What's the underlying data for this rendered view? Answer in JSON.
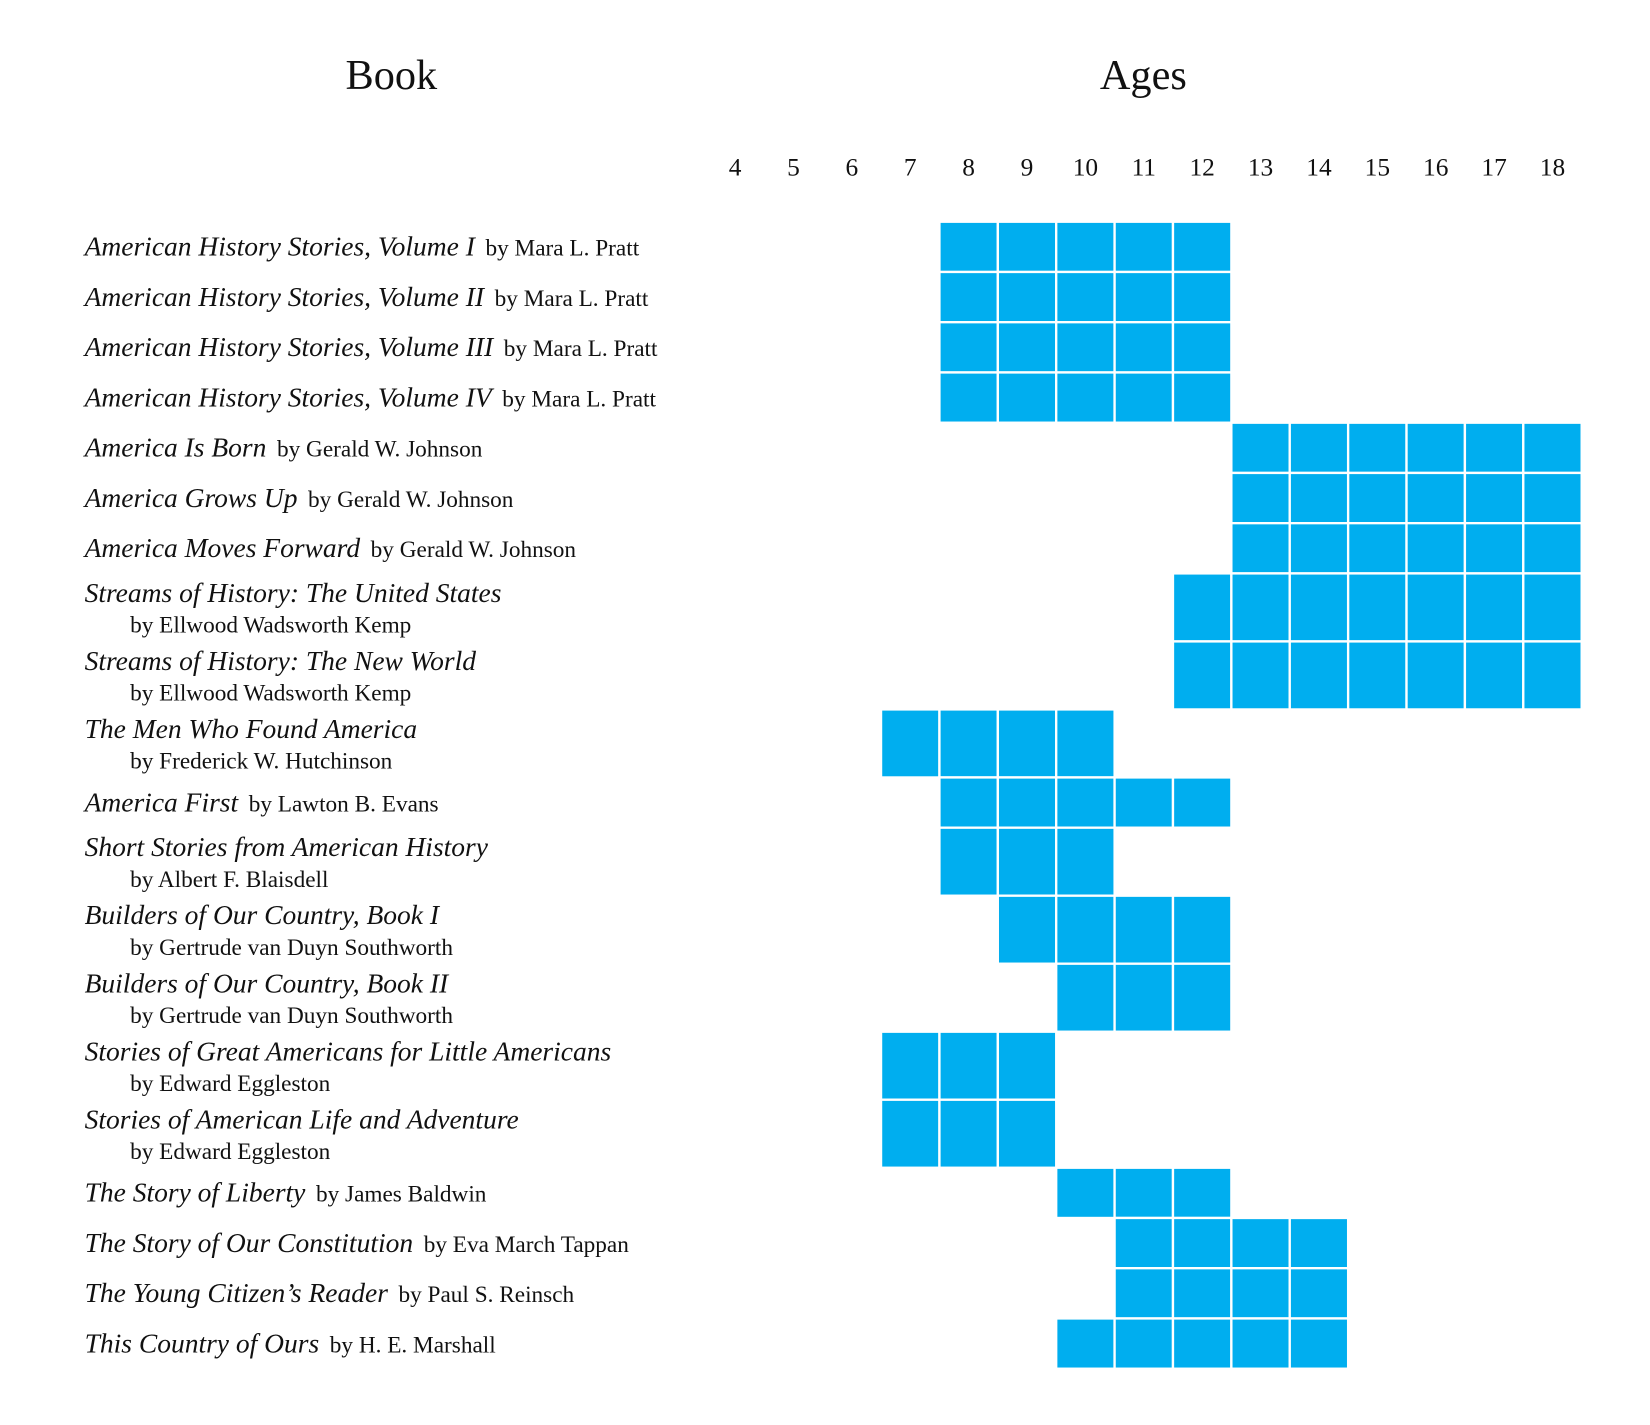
{
  "header": {
    "book": "Book",
    "ages": "Ages"
  },
  "color": "#00aeef",
  "ages": [
    4,
    5,
    6,
    7,
    8,
    9,
    10,
    11,
    12,
    13,
    14,
    15,
    16,
    17,
    18
  ],
  "rows": [
    {
      "title": "American History Stories, Volume I",
      "author": "by Mara L. Pratt",
      "from": 8,
      "to": 12
    },
    {
      "title": "American History Stories, Volume II",
      "author": "by Mara L. Pratt",
      "from": 8,
      "to": 12
    },
    {
      "title": "American History Stories, Volume III",
      "author": "by Mara L. Pratt",
      "from": 8,
      "to": 12
    },
    {
      "title": "American History Stories, Volume IV",
      "author": "by Mara L. Pratt",
      "from": 8,
      "to": 12
    },
    {
      "title": "America Is Born",
      "author": "by Gerald W. Johnson",
      "from": 13,
      "to": 18
    },
    {
      "title": "America Grows Up",
      "author": "by Gerald W. Johnson",
      "from": 13,
      "to": 18
    },
    {
      "title": "America Moves Forward",
      "author": "by Gerald W. Johnson",
      "from": 13,
      "to": 18
    },
    {
      "title": "Streams of History: The United States",
      "author": "by Ellwood Wadsworth Kemp",
      "from": 12,
      "to": 18
    },
    {
      "title": "Streams of History: The New World",
      "author": "by Ellwood Wadsworth Kemp",
      "from": 12,
      "to": 18
    },
    {
      "title": "The Men Who Found America",
      "author": "by Frederick W. Hutchinson",
      "from": 7,
      "to": 10
    },
    {
      "title": "America First",
      "author": "by Lawton B. Evans",
      "from": 8,
      "to": 12
    },
    {
      "title": "Short Stories from American History",
      "author": "by Albert F. Blaisdell",
      "from": 8,
      "to": 10
    },
    {
      "title": "Builders of Our Country, Book I",
      "author": "by Gertrude van Duyn Southworth",
      "from": 9,
      "to": 12
    },
    {
      "title": "Builders of Our Country, Book II",
      "author": "by Gertrude van Duyn Southworth",
      "from": 10,
      "to": 12
    },
    {
      "title": "Stories of Great Americans for Little Americans",
      "author": "by Edward Eggleston",
      "from": 7,
      "to": 9
    },
    {
      "title": "Stories of American Life and Adventure",
      "author": "by Edward Eggleston",
      "from": 7,
      "to": 9
    },
    {
      "title": "The Story of Liberty",
      "author": "by James Baldwin",
      "from": 10,
      "to": 12
    },
    {
      "title": "The Story of Our Constitution",
      "author": "by Eva March Tappan",
      "from": 11,
      "to": 14
    },
    {
      "title": "The Young Citizen’s Reader",
      "author": "by Paul S. Reinsch",
      "from": 11,
      "to": 14
    },
    {
      "title": "This Country of Ours",
      "author": "by H. E. Marshall",
      "from": 10,
      "to": 14
    }
  ]
}
